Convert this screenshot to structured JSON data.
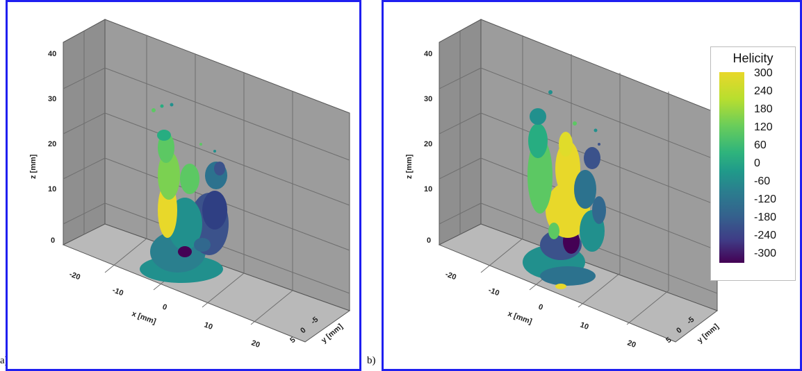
{
  "labels": {
    "a": "a)",
    "b": "b)"
  },
  "axes": {
    "z_title": "z [mm]",
    "x_title": "x [mm]",
    "y_title": "y [mm]",
    "z_ticks": [
      "40",
      "30",
      "20",
      "10",
      "0"
    ],
    "x_ticks": [
      "-20",
      "-10",
      "0",
      "10",
      "20"
    ],
    "y_ticks": [
      "-5",
      "0",
      "5"
    ]
  },
  "legend": {
    "title": "Helicity",
    "ticks": [
      "300",
      "240",
      "180",
      "120",
      "60",
      "0",
      "-60",
      "-120",
      "-180",
      "-240",
      "-300"
    ]
  },
  "colors": {
    "frame": "#1f1ff0",
    "wall": "#9a9a9a",
    "floor": "#b5b5b5",
    "grid": "#6e6e6e",
    "yellow": "#e8d82a",
    "green": "#5cc863",
    "teal": "#21908d",
    "blue": "#3b528b",
    "purple": "#440154"
  }
}
